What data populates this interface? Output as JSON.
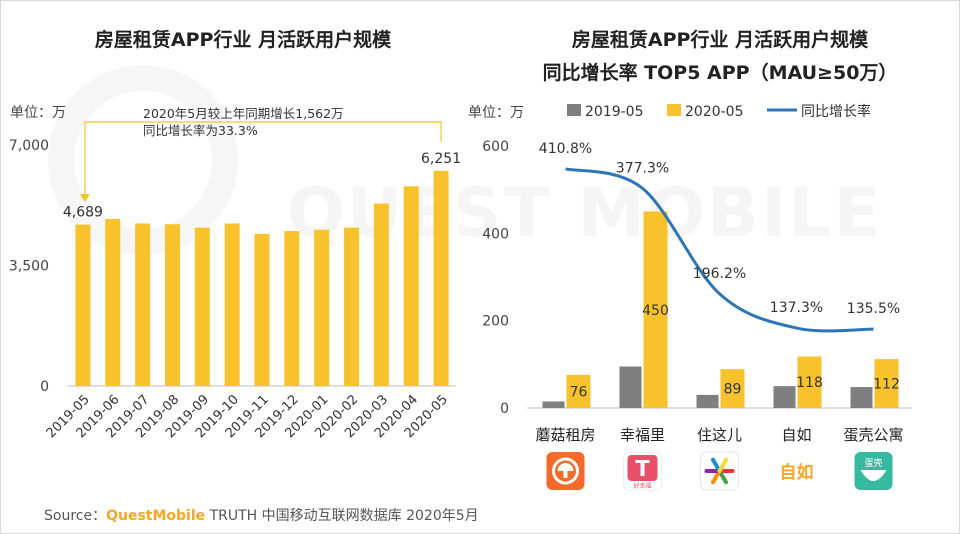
{
  "watermark": "QUEST MOBILE",
  "colors": {
    "bar_2020": "#f8c22c",
    "bar_2019": "#7f7f7f",
    "line": "#2e75b6",
    "annotation": "#f8c22c",
    "brand": "#f5a623"
  },
  "chart_data": [
    {
      "type": "bar",
      "title": "房屋租赁APP行业 月活跃用户规模",
      "unit_label": "单位：万",
      "categories": [
        "2019-05",
        "2019-06",
        "2019-07",
        "2019-08",
        "2019-09",
        "2019-10",
        "2019-11",
        "2019-12",
        "2020-01",
        "2020-02",
        "2020-03",
        "2020-04",
        "2020-05"
      ],
      "values": [
        4689,
        4850,
        4720,
        4700,
        4600,
        4720,
        4420,
        4500,
        4540,
        4600,
        5300,
        5800,
        6251
      ],
      "data_labels": {
        "2019-05": "4,689",
        "2020-05": "6,251"
      },
      "yticks": [
        "0",
        "3,500",
        "7,000"
      ],
      "ylim": [
        0,
        7000
      ],
      "annotation": {
        "line1": "2020年5月较上年同期增长1,562万",
        "line2": "同比增长率为33.3%"
      }
    },
    {
      "type": "bar+line",
      "title": "房屋租赁APP行业 月活跃用户规模",
      "subtitle": "同比增长率 TOP5 APP（MAU≥50万）",
      "unit_label": "单位：万",
      "categories": [
        "蘑菇租房",
        "幸福里",
        "住这儿",
        "自如",
        "蛋壳公寓"
      ],
      "series": [
        {
          "name": "2019-05",
          "values": [
            15,
            95,
            30,
            50,
            48
          ]
        },
        {
          "name": "2020-05",
          "values": [
            76,
            450,
            89,
            118,
            112
          ],
          "labels": [
            "76",
            "450",
            "89",
            "118",
            "112"
          ]
        },
        {
          "name": "同比增长率",
          "values": [
            410.8,
            377.3,
            196.2,
            137.3,
            135.5
          ],
          "labels": [
            "410.8%",
            "377.3%",
            "196.2%",
            "137.3%",
            "135.5%"
          ]
        }
      ],
      "yticks": [
        "0",
        "200",
        "400",
        "600"
      ],
      "ylim": [
        0,
        600
      ],
      "rate_ylim": [
        0,
        450
      ],
      "legend": [
        "2019-05",
        "2020-05",
        "同比增长率"
      ],
      "legend_position": "top",
      "app_icons": [
        {
          "name": "mogu-icon",
          "color": "#f26b2b"
        },
        {
          "name": "xingfuli-icon",
          "color": "#e8506a",
          "caption": "好幸福"
        },
        {
          "name": "zhuzher-icon",
          "color": "#ffffff"
        },
        {
          "name": "ziroom-icon",
          "color": "#f5a623",
          "text": "自如"
        },
        {
          "name": "danke-icon",
          "color": "#37b9a0",
          "text": "蛋壳"
        }
      ]
    }
  ],
  "source": {
    "prefix": "Source：",
    "brand": "QuestMobile",
    "rest": " TRUTH 中国移动互联网数据库 2020年5月"
  }
}
